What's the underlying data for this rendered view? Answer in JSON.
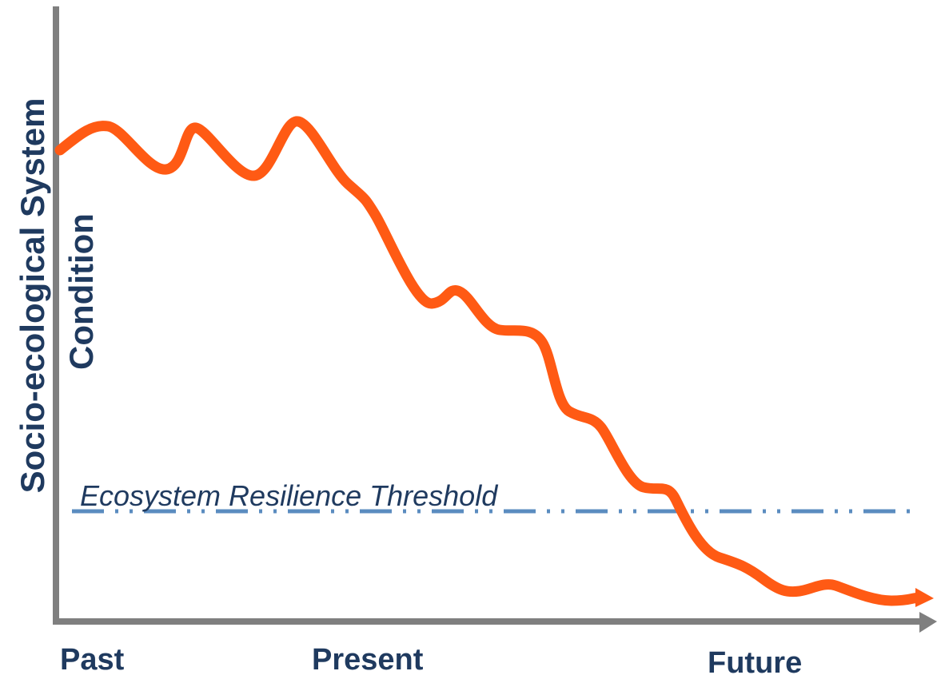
{
  "y_axis": {
    "label_line1": "Socio-ecological System",
    "label_line2": "Condition"
  },
  "threshold": {
    "label": "Ecosystem Resilience Threshold"
  },
  "x_axis": {
    "labels": [
      "Past",
      "Present",
      "Future"
    ]
  }
}
